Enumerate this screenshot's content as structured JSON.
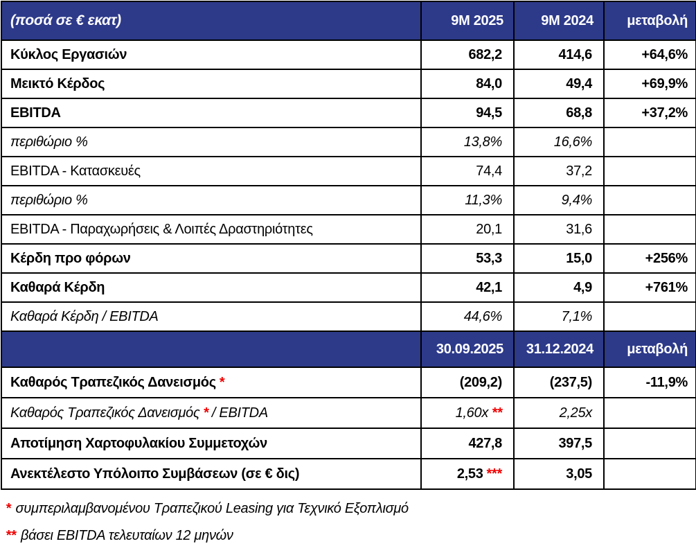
{
  "meta": {
    "colors": {
      "header_bg": "#2d3a8a",
      "header_text": "#ffffff",
      "border": "#000000",
      "asterisk_red": "#f00000",
      "body_text": "#000000"
    }
  },
  "table": {
    "header1": {
      "label": "(ποσά σε € εκατ)",
      "col1": "9M 2025",
      "col2": "9M 2024",
      "col3": "μεταβολή"
    },
    "rows1": [
      {
        "label": "Κύκλος Εργασιών",
        "v1": "682,2",
        "v2": "414,6",
        "change": "+64,6%",
        "style": "bold"
      },
      {
        "label": "Μεικτό Κέρδος",
        "v1": "84,0",
        "v2": "49,4",
        "change": "+69,9%",
        "style": "bold"
      },
      {
        "label": "EBITDA",
        "v1": "94,5",
        "v2": "68,8",
        "change": "+37,2%",
        "style": "bold"
      },
      {
        "label": "περιθώριο %",
        "v1": "13,8%",
        "v2": "16,6%",
        "change": "",
        "style": "italic"
      },
      {
        "label": "EBITDA - Κατασκευές",
        "v1": "74,4",
        "v2": "37,2",
        "change": "",
        "style": "regular"
      },
      {
        "label": "περιθώριο %",
        "v1": "11,3%",
        "v2": "9,4%",
        "change": "",
        "style": "italic"
      },
      {
        "label": "EBITDA - Παραχωρήσεις & Λοιπές Δραστηριότητες",
        "v1": "20,1",
        "v2": "31,6",
        "change": "",
        "style": "regular"
      },
      {
        "label": "Κέρδη προ φόρων",
        "v1": "53,3",
        "v2": "15,0",
        "change": "+256%",
        "style": "bold"
      },
      {
        "label": "Καθαρά Κέρδη",
        "v1": "42,1",
        "v2": "4,9",
        "change": "+761%",
        "style": "bold"
      },
      {
        "label": "Καθαρά Κέρδη / EBITDA",
        "v1": "44,6%",
        "v2": "7,1%",
        "change": "",
        "style": "italic"
      }
    ],
    "header2": {
      "label": "",
      "col1": "30.09.2025",
      "col2": "31.12.2024",
      "col3": "μεταβολή"
    },
    "rows2": [
      {
        "label": "Καθαρός Τραπεζικός Δανεισμός",
        "label_star": "*",
        "v1": "(209,2)",
        "v2": "(237,5)",
        "change": "-11,9%",
        "style": "bold"
      },
      {
        "label": "Καθαρός Τραπεζικός Δανεισμός",
        "label_star": "*",
        "label_suffix": "/ EBITDA",
        "v1": "1,60x",
        "v1_star": "**",
        "v2": "2,25x",
        "change": "",
        "style": "italic"
      },
      {
        "label": "Αποτίμηση Χαρτοφυλακίου Συμμετοχών",
        "v1": "427,8",
        "v2": "397,5",
        "change": "",
        "style": "bold"
      },
      {
        "label": "Ανεκτέλεστο Υπόλοιπο Συμβάσεων (σε € δις)",
        "v1": "2,53",
        "v1_star": "***",
        "v2": "3,05",
        "change": "",
        "style": "bold"
      }
    ]
  },
  "footnotes": [
    {
      "star": "*",
      "text": "συμπεριλαμβανομένου Τραπεζικού Leasing για Τεχνικό Εξοπλισμό"
    },
    {
      "star": "**",
      "text": "βάσει EBITDA τελευταίων 12 μηνών"
    }
  ]
}
